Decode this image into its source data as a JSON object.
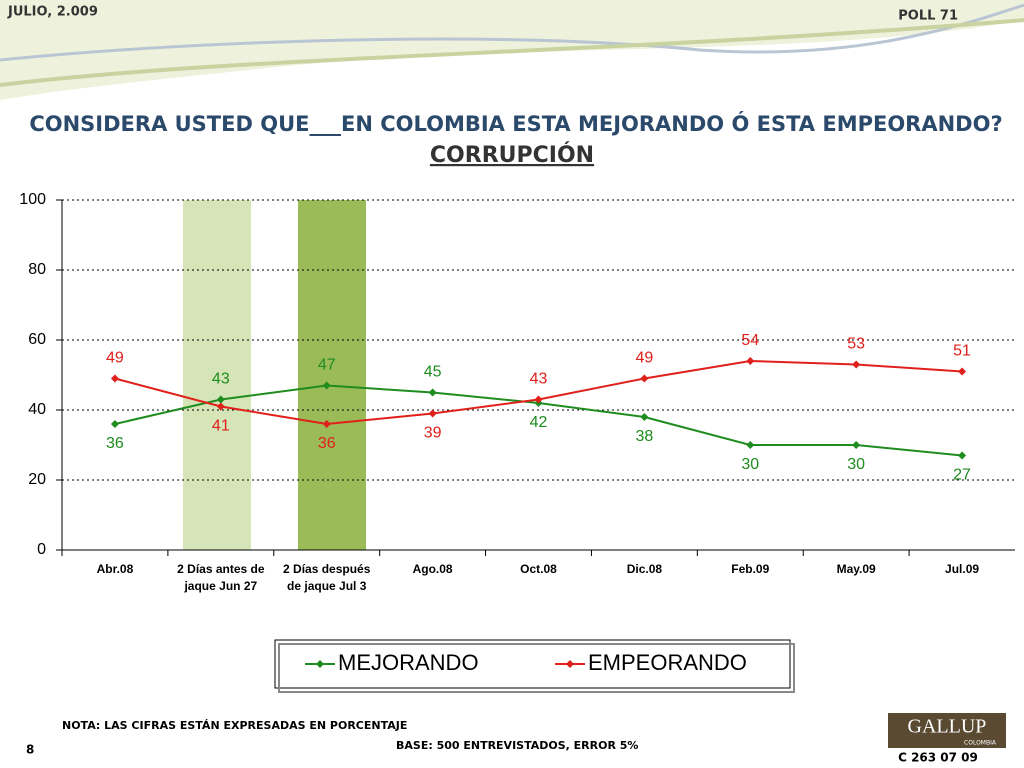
{
  "slide": {
    "date": "JULIO, 2.009",
    "poll": "POLL 71",
    "note": "NOTA: LAS CIFRAS ESTÁN EXPRESADAS EN PORCENTAJE",
    "base": "BASE: 500 ENTREVISTADOS, ERROR 5%",
    "page_number": "8",
    "logo": "GALLUP",
    "logo_sub": "COLOMBIA",
    "code": "C 263 07 09"
  },
  "chart_data": {
    "type": "line",
    "title": "CONSIDERA USTED QUE___EN COLOMBIA ESTA MEJORANDO Ó ESTA EMPEORANDO?",
    "subtitle": "CORRUPCIÓN",
    "categories": [
      "Abr.08",
      "2 Días antes de jaque Jun 27",
      "2 Días después de jaque Jul 3",
      "Ago.08",
      "Oct.08",
      "Dic.08",
      "Feb.09",
      "May.09",
      "Jul.09"
    ],
    "series": [
      {
        "name": "MEJORANDO",
        "color": "#1e8c1e",
        "values": [
          36,
          43,
          47,
          45,
          42,
          38,
          30,
          30,
          27
        ]
      },
      {
        "name": "EMPEORANDO",
        "color": "#e0201b",
        "values": [
          49,
          41,
          36,
          39,
          43,
          49,
          54,
          53,
          51
        ]
      }
    ],
    "ylim": [
      0,
      100
    ],
    "yticks": [
      0,
      20,
      40,
      60,
      80,
      100
    ],
    "grid": true,
    "legend": "bottom"
  }
}
